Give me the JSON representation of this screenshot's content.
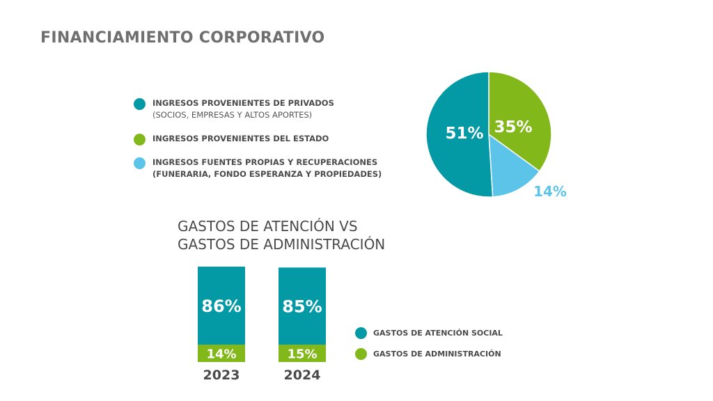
{
  "page": {
    "title": "FINANCIAMIENTO CORPORATIVO"
  },
  "colors": {
    "teal": "#0399a5",
    "green": "#82b81a",
    "light_blue": "#5cc4e8",
    "text_dark": "#4a4a4a",
    "title_gray": "#6f6f6f"
  },
  "income_legend": [
    {
      "label": "INGRESOS PROVENIENTES DE PRIVADOS",
      "sublabel": "(SOCIOS, EMPRESAS Y ALTOS APORTES)",
      "color": "#0399a5"
    },
    {
      "label": "INGRESOS PROVENIENTES DEL ESTADO",
      "sublabel": "",
      "color": "#82b81a"
    },
    {
      "label": "INGRESOS FUENTES PROPIAS  Y RECUPERACIONES",
      "sublabel": "(FUNERARIA, FONDO ESPERANZA Y PROPIEDADES)",
      "color": "#5cc4e8"
    }
  ],
  "expenses": {
    "title_line1": "GASTOS DE ATENCIÓN VS",
    "title_line2": "GASTOS DE ADMINISTRACIÓN"
  },
  "expense_legend": [
    {
      "label": "GASTOS DE ATENCIÓN SOCIAL",
      "color": "#0399a5"
    },
    {
      "label": "GASTOS DE ADMINISTRACIÓN",
      "color": "#82b81a"
    }
  ],
  "chart_data": [
    {
      "type": "pie",
      "title": "",
      "slices": [
        {
          "label": "INGRESOS PROVENIENTES DE PRIVADOS",
          "value": 51,
          "display": "51%",
          "color": "#0399a5"
        },
        {
          "label": "INGRESOS PROVENIENTES DEL ESTADO",
          "value": 35,
          "display": "35%",
          "color": "#82b81a"
        },
        {
          "label": "INGRESOS FUENTES PROPIAS  Y RECUPERACIONES",
          "value": 14,
          "display": "14%",
          "color": "#5cc4e8"
        }
      ],
      "start_angle_deg": 0,
      "direction": "clockwise",
      "order_from_top": [
        "INGRESOS PROVENIENTES DEL ESTADO",
        "INGRESOS FUENTES PROPIAS  Y RECUPERACIONES",
        "INGRESOS PROVENIENTES DE PRIVADOS"
      ]
    },
    {
      "type": "bar",
      "stacked": true,
      "title": "GASTOS DE ATENCIÓN VS GASTOS DE ADMINISTRACIÓN",
      "categories": [
        "2023",
        "2024"
      ],
      "series": [
        {
          "name": "GASTOS DE ATENCIÓN SOCIAL",
          "values": [
            86,
            85
          ],
          "display": [
            "86%",
            "85%"
          ],
          "color": "#0399a5"
        },
        {
          "name": "GASTOS DE ADMINISTRACIÓN",
          "values": [
            14,
            15
          ],
          "display": [
            "14%",
            "15%"
          ],
          "color": "#82b81a"
        }
      ],
      "ylim": [
        0,
        100
      ],
      "unit": "%"
    }
  ]
}
